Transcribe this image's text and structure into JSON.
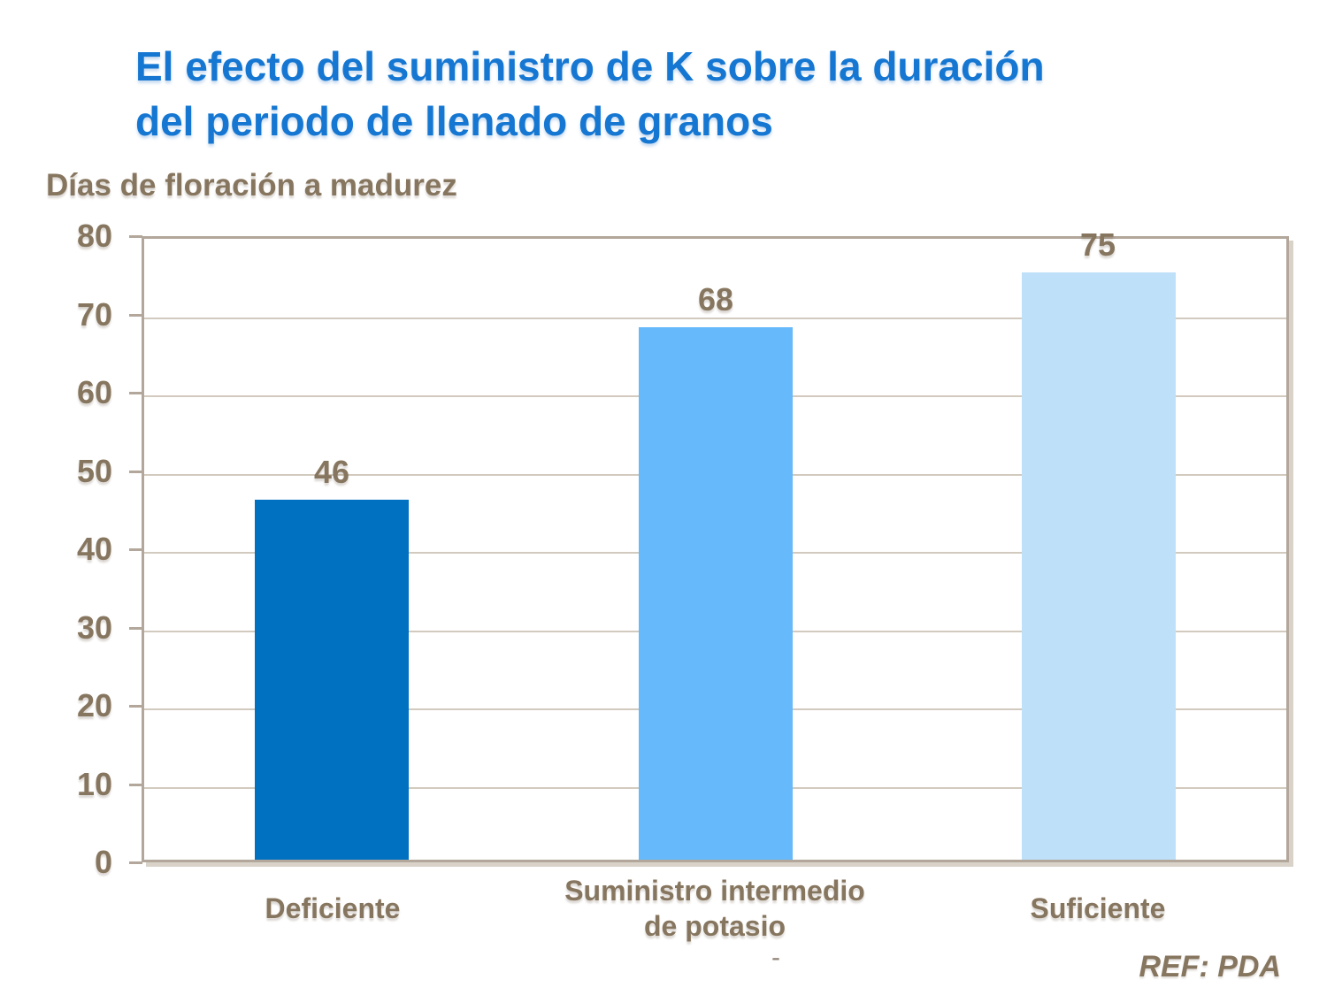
{
  "slide": {
    "title_line1": "El efecto del suministro de K sobre la duración",
    "title_line2": "del periodo de llenado de granos",
    "footer_ref": "REF: PDA",
    "stray_dash": "-"
  },
  "axis": {
    "y_title": "Días de floración a madurez",
    "y_ticks": [
      "80",
      "70",
      "60",
      "50",
      "40",
      "30",
      "20",
      "10",
      "0"
    ]
  },
  "chart_data": {
    "type": "bar",
    "title": "El efecto del suministro de K sobre la duración del periodo de llenado de granos",
    "ylabel": "Días de floración a madurez",
    "xlabel": "",
    "categories": [
      "Deficiente",
      "Suministro intermedio de potasio",
      "Suficiente"
    ],
    "category_label_lines": [
      [
        "Deficiente"
      ],
      [
        "Suministro intermedio",
        "de potasio"
      ],
      [
        "Suficiente"
      ]
    ],
    "values": [
      46,
      68,
      75
    ],
    "value_labels": [
      "46",
      "68",
      "75"
    ],
    "ylim": [
      0,
      80
    ],
    "ytick_step": 10,
    "grid": true,
    "legend": false,
    "bar_colors": [
      "#0070C0",
      "#66B9FA",
      "#BFE0F9"
    ],
    "source": "REF: PDA"
  },
  "colors": {
    "title_blue": "#1577D2",
    "text_brown": "#87765F",
    "axis_line": "#B2A79A",
    "gridline": "#D2CABE",
    "background": "#FFFFFF"
  }
}
